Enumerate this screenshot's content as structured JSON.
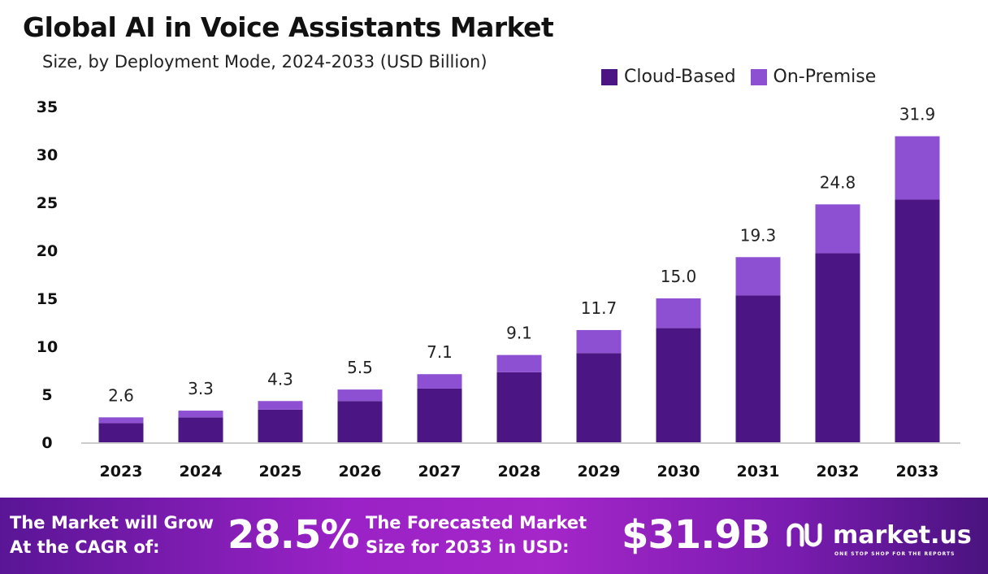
{
  "chart_data": {
    "type": "bar",
    "stacked": true,
    "title": "Global AI in Voice Assistants Market",
    "subtitle": "Size, by Deployment Mode, 2024-2033 (USD Billion)",
    "categories": [
      "2023",
      "2024",
      "2025",
      "2026",
      "2027",
      "2028",
      "2029",
      "2030",
      "2031",
      "2032",
      "2033"
    ],
    "series": [
      {
        "name": "Cloud-Based",
        "color": "#4b1683",
        "values": [
          2.0,
          2.6,
          3.4,
          4.3,
          5.6,
          7.3,
          9.3,
          11.9,
          15.3,
          19.7,
          25.3
        ]
      },
      {
        "name": "On-Premise",
        "color": "#8e50d2",
        "values": [
          0.6,
          0.7,
          0.9,
          1.2,
          1.5,
          1.8,
          2.4,
          3.1,
          4.0,
          5.1,
          6.6
        ]
      }
    ],
    "totals": [
      "2.6",
      "3.3",
      "4.3",
      "5.5",
      "7.1",
      "9.1",
      "11.7",
      "15.0",
      "19.3",
      "24.8",
      "31.9"
    ],
    "ylim": [
      0,
      35
    ],
    "yticks": [
      "0",
      "5",
      "10",
      "15",
      "20",
      "25",
      "30",
      "35"
    ],
    "grid": false,
    "legend": "top-right"
  },
  "footer": {
    "cagr_label_1": "The Market will Grow",
    "cagr_label_2": "At the CAGR of:",
    "cagr_value": "28.5%",
    "forecast_label_1": "The Forecasted Market",
    "forecast_label_2": "Size for 2033 in USD:",
    "forecast_value": "$31.9B",
    "logo_text": "market.us",
    "logo_tagline": "ONE STOP SHOP FOR THE REPORTS"
  }
}
